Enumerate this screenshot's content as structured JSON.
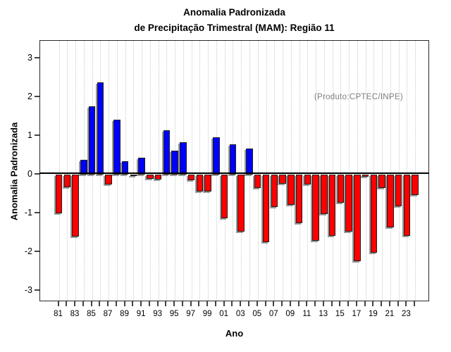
{
  "title": {
    "line1": "Anomalia Padronizada",
    "line2": "de Precipitação Trimestral (MAM): Região 11"
  },
  "annotation": {
    "text": "(Produto:CPTEC/INPE)",
    "color": "#7f7f7f"
  },
  "axes": {
    "y_label": "Anomalia Padronizada",
    "x_label": "Ano",
    "y_ticks": [
      "3",
      "2",
      "1",
      "0",
      "-1",
      "-2",
      "-3"
    ],
    "y_tick_values": [
      3,
      2,
      1,
      0,
      -1,
      -2,
      -3
    ],
    "x_tick_labels": [
      "81",
      "83",
      "85",
      "87",
      "89",
      "91",
      "93",
      "95",
      "97",
      "99",
      "01",
      "03",
      "05",
      "07",
      "09",
      "11",
      "13",
      "15",
      "17",
      "19",
      "21",
      "23"
    ]
  },
  "colors": {
    "positive_bar": "#0000ff",
    "negative_bar": "#ff0000",
    "bar_border": "#1f1f1f",
    "bar_shadow": "#9b9b9b",
    "grid": "#c9c9c9",
    "annotation_gray": "#7f7f7f"
  },
  "chart_data": {
    "type": "bar",
    "title": "Anomalia Padronizada de Precipitação Trimestral (MAM): Região 11",
    "xlabel": "Ano",
    "ylabel": "Anomalia Padronizada",
    "ylim": [
      -3.3,
      3.45
    ],
    "grid": "vertical-dotted-per-year",
    "legend": "none",
    "x": [
      "81",
      "82",
      "83",
      "84",
      "85",
      "86",
      "87",
      "88",
      "89",
      "90",
      "91",
      "92",
      "93",
      "94",
      "95",
      "96",
      "97",
      "98",
      "99",
      "00",
      "01",
      "02",
      "03",
      "04",
      "05",
      "06",
      "07",
      "08",
      "09",
      "10",
      "11",
      "12",
      "13",
      "14",
      "15",
      "16",
      "17",
      "18",
      "19",
      "20",
      "21",
      "22",
      "23",
      "24"
    ],
    "values": [
      -1.0,
      -0.32,
      -1.6,
      0.39,
      1.77,
      2.38,
      -0.25,
      1.41,
      0.35,
      -0.02,
      0.44,
      -0.1,
      -0.13,
      1.15,
      0.61,
      0.83,
      -0.14,
      -0.43,
      -0.43,
      0.97,
      -1.12,
      0.79,
      -1.48,
      0.68,
      -0.35,
      -1.74,
      -0.84,
      -0.24,
      -0.79,
      -1.26,
      -0.25,
      -1.71,
      -1.02,
      -1.58,
      -0.72,
      -1.47,
      -2.24,
      -0.05,
      -2.01,
      -0.35,
      -1.36,
      -0.82,
      -1.59,
      -0.52
    ],
    "positive_color": "#0000ff",
    "negative_color": "#ff0000"
  }
}
